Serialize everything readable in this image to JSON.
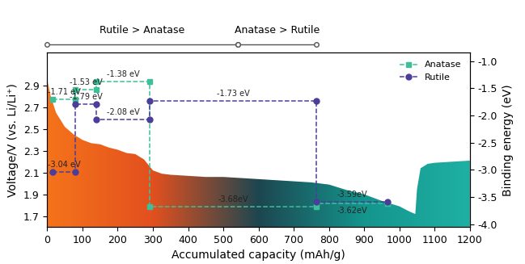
{
  "chart_data": {
    "type": "line",
    "x_label": "Accumulated capacity (mAh/g)",
    "y_label": "Voltage/V (vs. Li/Li⁺)",
    "y2_label": "Binding energy (eV)",
    "xlim": [
      0,
      1200
    ],
    "xticks": [
      0,
      100,
      200,
      300,
      400,
      500,
      600,
      700,
      800,
      900,
      1000,
      1100,
      1200
    ],
    "ylim": [
      1.6,
      3.2
    ],
    "yticks": [
      1.7,
      1.9,
      2.1,
      2.3,
      2.5,
      2.7,
      2.9
    ],
    "y2lim": [
      -4.05,
      -0.85
    ],
    "y2ticks": [
      -1.0,
      -1.5,
      -2.0,
      -2.5,
      -3.0,
      -3.5,
      -4.0
    ],
    "legend": "upper right",
    "regions": [
      {
        "label": "Rutile > Anatase",
        "x": [
          0,
          540
        ]
      },
      {
        "label": "Anatase > Rutile",
        "x": [
          540,
          765
        ]
      }
    ],
    "voltage_curve": {
      "type": "area",
      "x": [
        0,
        10,
        25,
        50,
        75,
        100,
        125,
        150,
        175,
        200,
        225,
        250,
        275,
        300,
        325,
        350,
        400,
        450,
        500,
        550,
        600,
        650,
        700,
        750,
        800,
        850,
        900,
        950,
        1000,
        1030,
        1045,
        1050,
        1060,
        1080,
        1100,
        1150,
        1200
      ],
      "values": [
        2.95,
        2.8,
        2.65,
        2.52,
        2.45,
        2.4,
        2.37,
        2.36,
        2.33,
        2.31,
        2.28,
        2.27,
        2.22,
        2.12,
        2.09,
        2.08,
        2.07,
        2.06,
        2.06,
        2.05,
        2.04,
        2.03,
        2.02,
        2.01,
        1.99,
        1.94,
        1.9,
        1.84,
        1.79,
        1.74,
        1.72,
        1.95,
        2.14,
        2.18,
        2.19,
        2.2,
        2.21
      ],
      "colors": [
        "#f5731a",
        "#e2501f",
        "#1d4650",
        "#14958d",
        "#1fb0a4"
      ]
    },
    "series": [
      {
        "name": "Anatase",
        "axis": "y2",
        "color": "#3dbf9a",
        "marker": "square",
        "line_style": "dashed",
        "x": [
          15,
          80,
          140,
          290,
          765
        ],
        "x_end": [
          80,
          140,
          290,
          765,
          965
        ],
        "values": [
          -1.71,
          -1.53,
          -1.38,
          -3.68,
          -3.62
        ],
        "value_labels": [
          "-1.71 eV",
          "-1.53 eV",
          "-1.38 eV",
          "-3.68eV",
          "-3.62eV"
        ]
      },
      {
        "name": "Rutile",
        "axis": "y2",
        "color": "#4a3e98",
        "marker": "circle",
        "line_style": "dashed",
        "x": [
          15,
          80,
          140,
          290,
          765
        ],
        "x_end": [
          80,
          140,
          290,
          765,
          965
        ],
        "values": [
          -3.04,
          -1.79,
          -2.08,
          -1.73,
          -3.59
        ],
        "value_labels": [
          "-3.04 eV",
          "-1.79 eV",
          "-2.08 eV",
          "-1.73 eV",
          "-3.59eV"
        ]
      }
    ]
  }
}
